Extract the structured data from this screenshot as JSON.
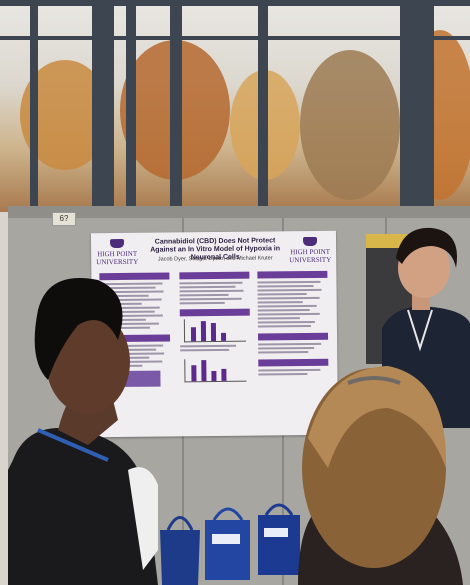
{
  "scene": {
    "description_colors": {
      "poster_accent": "#6a3d98",
      "board": "#a7a6a1",
      "window_frame": "#3d4650"
    }
  },
  "board_tag": "6?",
  "poster": {
    "logo_left": [
      "HIGH POINT",
      "UNIVERSITY"
    ],
    "logo_right": [
      "HIGH POINT",
      "UNIVERSITY"
    ],
    "title": "Cannabidiol (CBD) Does Not Protect Against an In Vitro Model of Hypoxia in Neuronal Cells",
    "authors": "Jacob Dyer, Swagat Lipato, and Michael Kruter"
  }
}
